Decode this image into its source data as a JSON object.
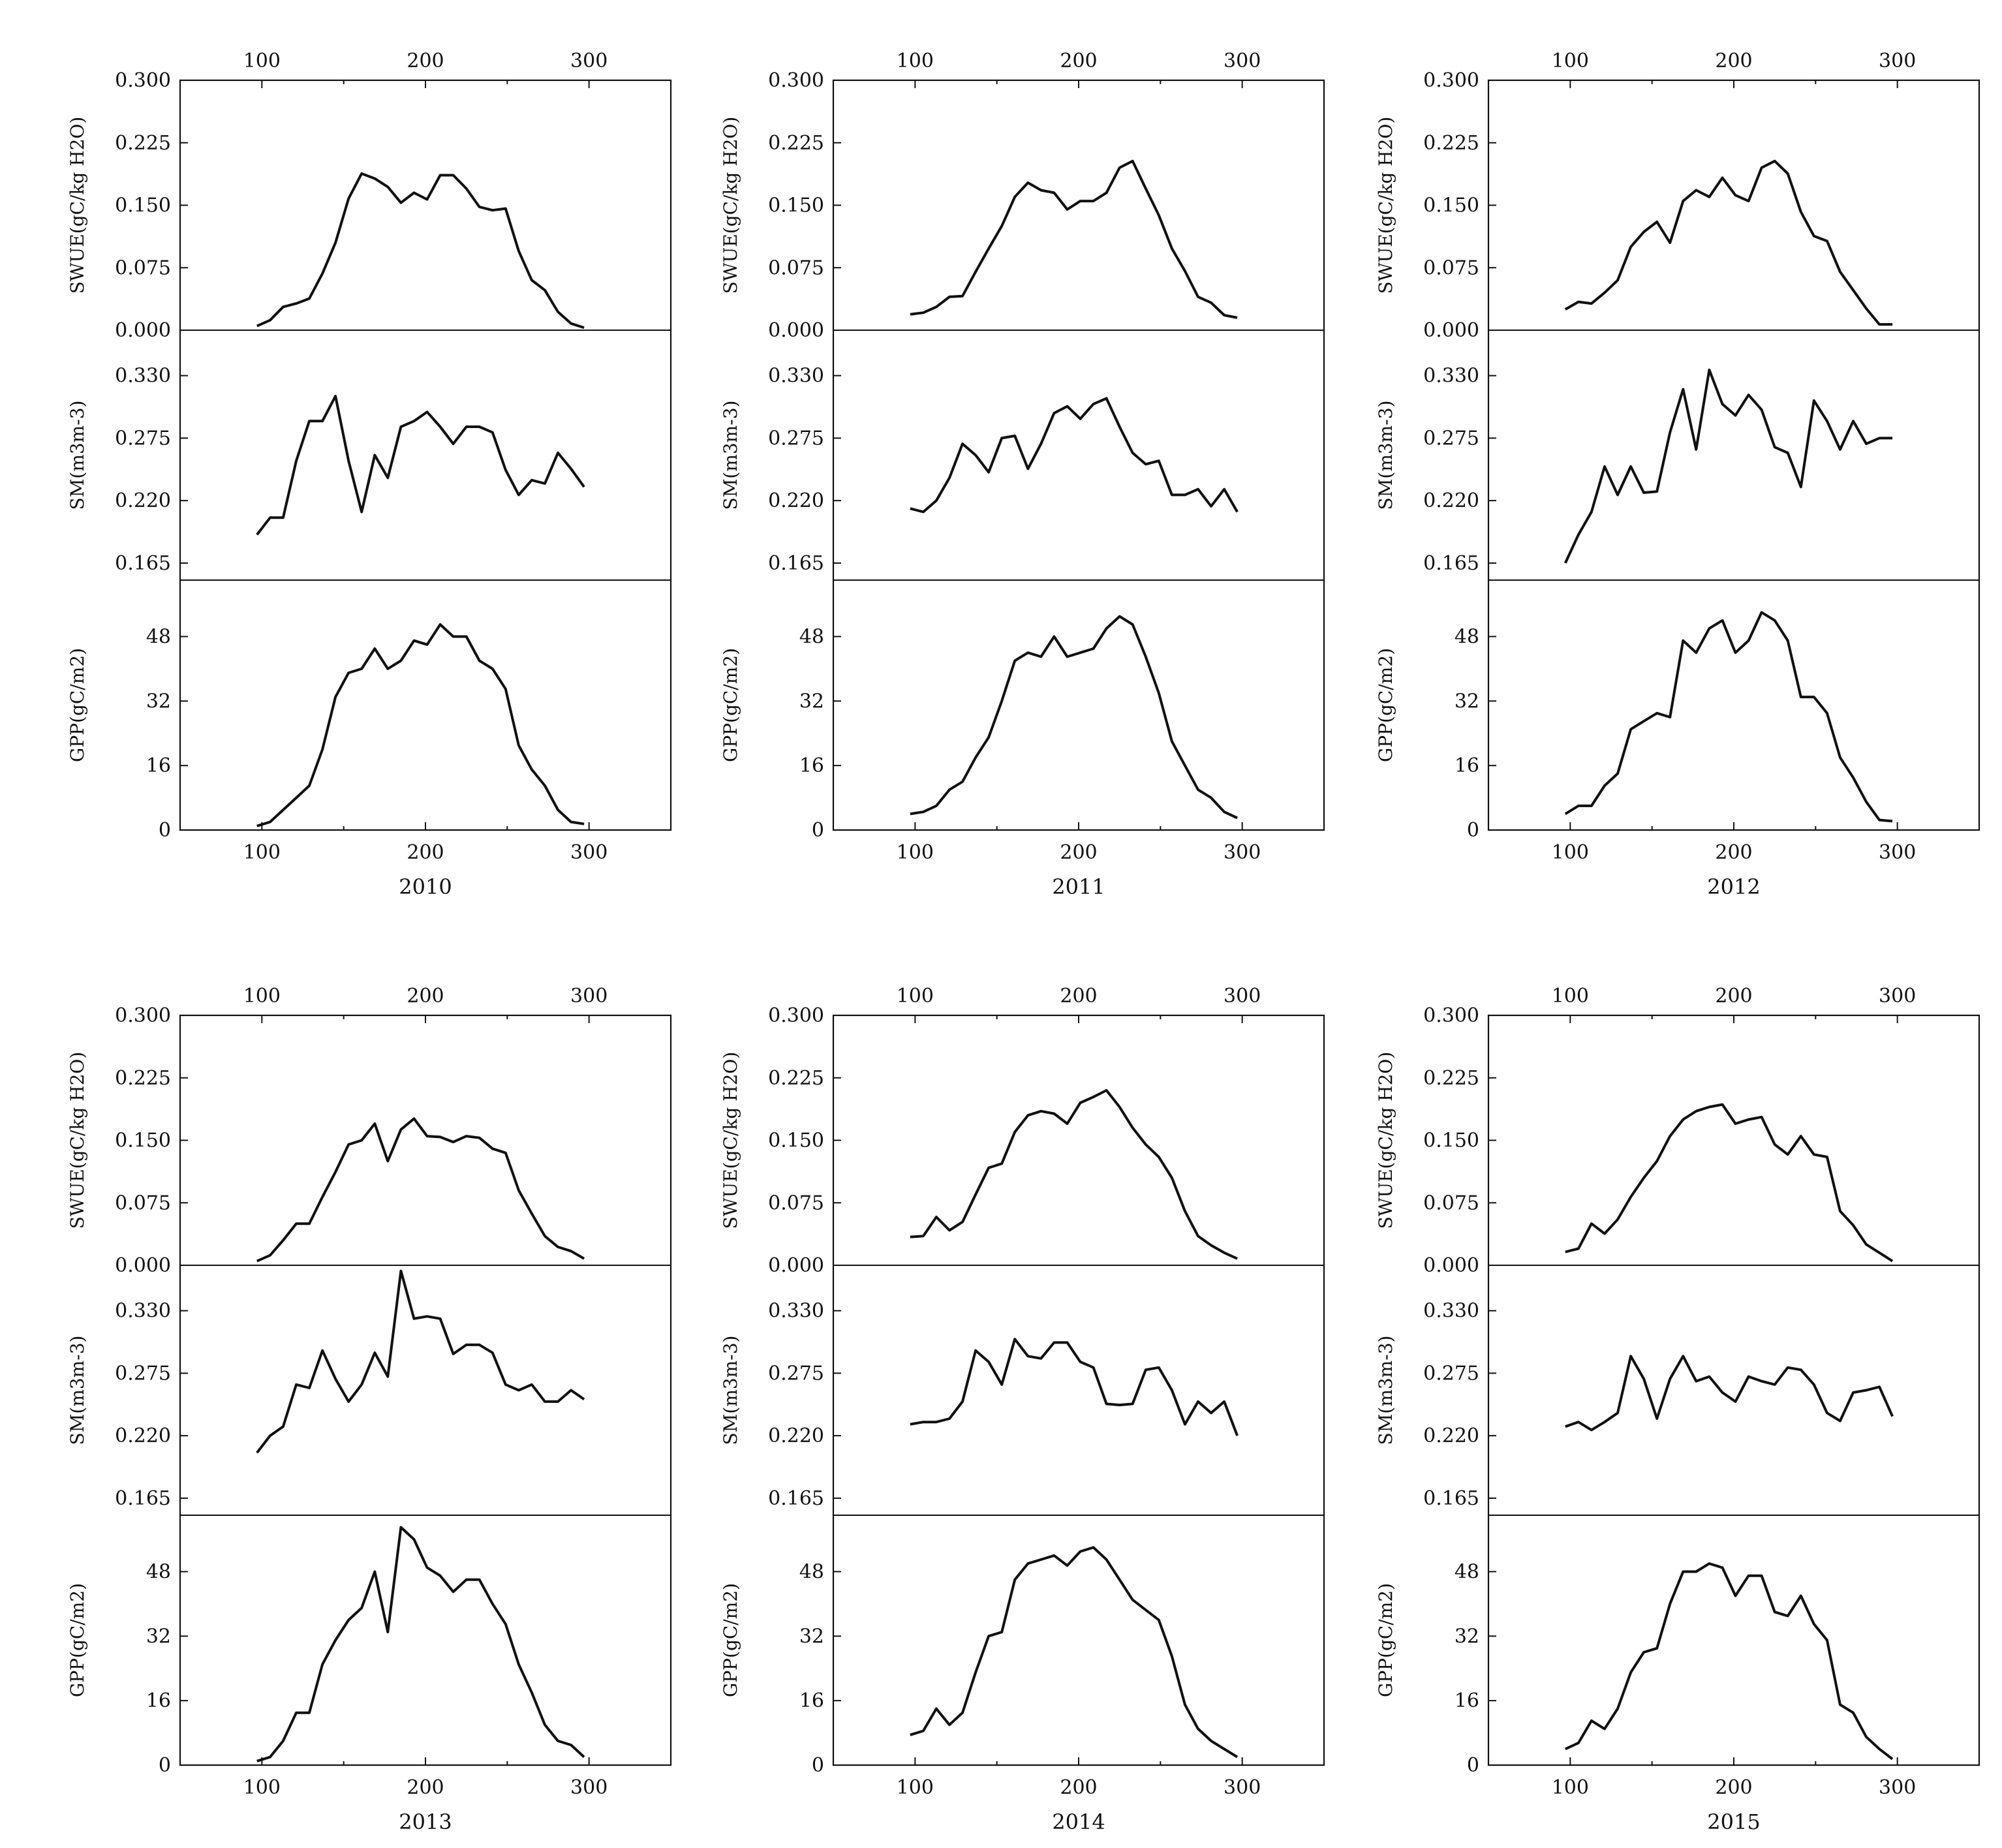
{
  "figure": {
    "type": "line",
    "x_ticks": [
      100,
      200,
      300
    ],
    "xlim": [
      50,
      350
    ],
    "rows": [
      {
        "var": "SWUE",
        "ylabel": "SWUE(gC/kg H2O)",
        "ylim": [
          0,
          0.3
        ],
        "ticks": [
          0.0,
          0.075,
          0.15,
          0.225,
          0.3
        ],
        "tick_labels": [
          "0.000",
          "0.075",
          "0.150",
          "0.225",
          "0.300"
        ]
      },
      {
        "var": "SM",
        "ylabel": "SM(m3m-3)",
        "ylim": [
          0.15,
          0.37
        ],
        "ticks": [
          0.165,
          0.22,
          0.275,
          0.33
        ],
        "tick_labels": [
          "0.165",
          "0.220",
          "0.275",
          "0.330"
        ]
      },
      {
        "var": "GPP",
        "ylabel": "GPP(gC/m2)",
        "ylim": [
          0,
          62
        ],
        "ticks": [
          0,
          16,
          32,
          48
        ],
        "tick_labels": [
          "0",
          "16",
          "32",
          "48"
        ]
      }
    ]
  },
  "chart_data": [
    {
      "title": "2010",
      "x": [
        97,
        105,
        113,
        121,
        129,
        137,
        145,
        153,
        161,
        169,
        177,
        185,
        193,
        201,
        209,
        217,
        225,
        233,
        241,
        249,
        257,
        265,
        273,
        281,
        289,
        297
      ],
      "series": [
        {
          "var": "SWUE",
          "values": [
            0.005,
            0.012,
            0.028,
            0.032,
            0.038,
            0.068,
            0.105,
            0.158,
            0.188,
            0.182,
            0.172,
            0.153,
            0.165,
            0.157,
            0.186,
            0.186,
            0.17,
            0.148,
            0.144,
            0.146,
            0.095,
            0.06,
            0.048,
            0.022,
            0.008,
            0.003
          ]
        },
        {
          "var": "SM",
          "values": [
            0.19,
            0.205,
            0.205,
            0.255,
            0.29,
            0.29,
            0.312,
            0.255,
            0.21,
            0.26,
            0.24,
            0.285,
            0.29,
            0.298,
            0.285,
            0.27,
            0.285,
            0.285,
            0.28,
            0.247,
            0.225,
            0.238,
            0.235,
            0.262,
            0.248,
            0.232
          ]
        },
        {
          "var": "GPP",
          "values": [
            1,
            2,
            5,
            8,
            11,
            20,
            33,
            39,
            40,
            45,
            40,
            42,
            47,
            46,
            51,
            48,
            48,
            42,
            40,
            35,
            21,
            15,
            11,
            5,
            2,
            1.5
          ]
        }
      ]
    },
    {
      "title": "2011",
      "x": [
        97,
        105,
        113,
        121,
        129,
        137,
        145,
        153,
        161,
        169,
        177,
        185,
        193,
        201,
        209,
        217,
        225,
        233,
        241,
        249,
        257,
        265,
        273,
        281,
        289,
        297
      ],
      "series": [
        {
          "var": "SWUE",
          "values": [
            0.019,
            0.021,
            0.028,
            0.04,
            0.041,
            0.07,
            0.098,
            0.125,
            0.16,
            0.177,
            0.168,
            0.165,
            0.145,
            0.155,
            0.155,
            0.165,
            0.195,
            0.203,
            0.17,
            0.138,
            0.098,
            0.071,
            0.04,
            0.033,
            0.018,
            0.015
          ]
        },
        {
          "var": "SM",
          "values": [
            0.213,
            0.21,
            0.22,
            0.24,
            0.27,
            0.26,
            0.245,
            0.275,
            0.277,
            0.248,
            0.27,
            0.297,
            0.303,
            0.292,
            0.305,
            0.31,
            0.285,
            0.262,
            0.252,
            0.255,
            0.225,
            0.225,
            0.23,
            0.215,
            0.23,
            0.21
          ]
        },
        {
          "var": "GPP",
          "values": [
            4,
            4.5,
            6,
            10,
            12,
            18,
            23,
            32,
            42,
            44,
            43,
            48,
            43,
            44,
            45,
            50,
            53,
            51,
            43,
            34,
            22,
            16,
            10,
            8,
            4.5,
            3
          ]
        }
      ]
    },
    {
      "title": "2012",
      "x": [
        97,
        105,
        113,
        121,
        129,
        137,
        145,
        153,
        161,
        169,
        177,
        185,
        193,
        201,
        209,
        217,
        225,
        233,
        241,
        249,
        257,
        265,
        273,
        281,
        289,
        297
      ],
      "series": [
        {
          "var": "SWUE",
          "values": [
            0.025,
            0.034,
            0.032,
            0.045,
            0.06,
            0.1,
            0.118,
            0.13,
            0.105,
            0.155,
            0.168,
            0.16,
            0.183,
            0.162,
            0.155,
            0.195,
            0.203,
            0.188,
            0.142,
            0.113,
            0.107,
            0.07,
            0.048,
            0.026,
            0.007,
            0.007
          ]
        },
        {
          "var": "SM",
          "values": [
            0.165,
            0.19,
            0.21,
            0.25,
            0.225,
            0.25,
            0.227,
            0.228,
            0.28,
            0.318,
            0.265,
            0.335,
            0.305,
            0.295,
            0.313,
            0.3,
            0.267,
            0.262,
            0.232,
            0.308,
            0.29,
            0.265,
            0.29,
            0.27,
            0.275,
            0.275
          ]
        },
        {
          "var": "GPP",
          "values": [
            4,
            6,
            6,
            11,
            14,
            25,
            27,
            29,
            28,
            47,
            44,
            50,
            52,
            44,
            47,
            54,
            52,
            47,
            33,
            33,
            29,
            18,
            13,
            7,
            2.5,
            2.2
          ]
        }
      ]
    },
    {
      "title": "2013",
      "x": [
        97,
        105,
        113,
        121,
        129,
        137,
        145,
        153,
        161,
        169,
        177,
        185,
        193,
        201,
        209,
        217,
        225,
        233,
        241,
        249,
        257,
        265,
        273,
        281,
        289,
        297
      ],
      "series": [
        {
          "var": "SWUE",
          "values": [
            0.005,
            0.012,
            0.03,
            0.05,
            0.05,
            0.082,
            0.112,
            0.145,
            0.15,
            0.17,
            0.125,
            0.163,
            0.176,
            0.155,
            0.154,
            0.148,
            0.155,
            0.153,
            0.14,
            0.135,
            0.09,
            0.062,
            0.035,
            0.022,
            0.017,
            0.008
          ]
        },
        {
          "var": "SM",
          "values": [
            0.205,
            0.22,
            0.228,
            0.265,
            0.262,
            0.295,
            0.27,
            0.25,
            0.265,
            0.293,
            0.272,
            0.365,
            0.323,
            0.325,
            0.323,
            0.292,
            0.3,
            0.3,
            0.293,
            0.265,
            0.26,
            0.265,
            0.25,
            0.25,
            0.26,
            0.252
          ]
        },
        {
          "var": "GPP",
          "values": [
            1,
            2,
            6,
            13,
            13,
            25,
            31,
            36,
            39,
            48,
            33,
            59,
            56,
            49,
            47,
            43,
            46,
            46,
            40,
            35,
            25,
            18,
            10,
            6,
            5,
            2
          ]
        }
      ]
    },
    {
      "title": "2014",
      "x": [
        97,
        105,
        113,
        121,
        129,
        137,
        145,
        153,
        161,
        169,
        177,
        185,
        193,
        201,
        209,
        217,
        225,
        233,
        241,
        249,
        257,
        265,
        273,
        281,
        289,
        297
      ],
      "series": [
        {
          "var": "SWUE",
          "values": [
            0.034,
            0.035,
            0.058,
            0.042,
            0.052,
            0.085,
            0.117,
            0.122,
            0.16,
            0.18,
            0.185,
            0.182,
            0.17,
            0.195,
            0.202,
            0.21,
            0.19,
            0.165,
            0.145,
            0.13,
            0.105,
            0.065,
            0.035,
            0.024,
            0.015,
            0.008
          ]
        },
        {
          "var": "SM",
          "values": [
            0.23,
            0.232,
            0.232,
            0.235,
            0.25,
            0.295,
            0.285,
            0.265,
            0.305,
            0.29,
            0.288,
            0.302,
            0.302,
            0.285,
            0.28,
            0.248,
            0.247,
            0.248,
            0.278,
            0.28,
            0.26,
            0.23,
            0.25,
            0.24,
            0.25,
            0.22
          ]
        },
        {
          "var": "GPP",
          "values": [
            7.5,
            8.5,
            14,
            10,
            13,
            23,
            32,
            33,
            46,
            50,
            51,
            52,
            49.5,
            53,
            54,
            51,
            46,
            41,
            38.5,
            36,
            27,
            15,
            9,
            6,
            4,
            2
          ]
        }
      ]
    },
    {
      "title": "2015",
      "x": [
        97,
        105,
        113,
        121,
        129,
        137,
        145,
        153,
        161,
        169,
        177,
        185,
        193,
        201,
        209,
        217,
        225,
        233,
        241,
        249,
        257,
        265,
        273,
        281,
        289,
        297
      ],
      "series": [
        {
          "var": "SWUE",
          "values": [
            0.016,
            0.02,
            0.05,
            0.038,
            0.055,
            0.082,
            0.105,
            0.125,
            0.155,
            0.175,
            0.185,
            0.19,
            0.193,
            0.17,
            0.175,
            0.178,
            0.145,
            0.133,
            0.155,
            0.133,
            0.13,
            0.065,
            0.048,
            0.025,
            0.015,
            0.005
          ]
        },
        {
          "var": "SM",
          "values": [
            0.228,
            0.232,
            0.225,
            0.232,
            0.24,
            0.29,
            0.27,
            0.235,
            0.27,
            0.29,
            0.268,
            0.272,
            0.258,
            0.25,
            0.272,
            0.268,
            0.265,
            0.28,
            0.278,
            0.265,
            0.24,
            0.233,
            0.258,
            0.26,
            0.263,
            0.237
          ]
        },
        {
          "var": "GPP",
          "values": [
            4,
            5.5,
            11,
            9,
            14,
            23,
            28,
            29,
            40,
            48,
            48,
            50,
            49,
            42,
            47,
            47,
            38,
            37,
            42,
            35,
            31,
            15,
            13,
            7,
            4,
            1.5
          ]
        }
      ]
    }
  ]
}
